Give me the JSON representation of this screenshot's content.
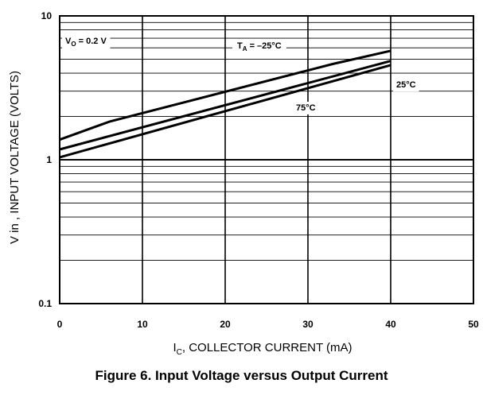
{
  "caption": "Figure 6. Input Voltage versus Output Current",
  "chart_data": {
    "type": "line",
    "xlabel_main": "I",
    "xlabel_sub": "C",
    "xlabel_rest": ", COLLECTOR CURRENT (mA)",
    "ylabel": "V in , INPUT VOLTAGE (VOLTS)",
    "xlim": [
      0,
      50
    ],
    "ylim": [
      0.1,
      10
    ],
    "yscale": "log",
    "grid": true,
    "x_ticks": [
      0,
      10,
      20,
      30,
      40,
      50
    ],
    "x_tick_labels": [
      "0",
      "10",
      "20",
      "30",
      "40",
      "50"
    ],
    "y_ticks": [
      0.1,
      1,
      10
    ],
    "y_tick_labels": [
      "0.1",
      "1",
      "10"
    ],
    "series": [
      {
        "name": "TA = -25°C",
        "x": [
          0,
          6,
          33,
          40
        ],
        "y": [
          1.38,
          1.84,
          4.63,
          5.72
        ]
      },
      {
        "name": "25°C",
        "x": [
          0,
          40
        ],
        "y": [
          1.18,
          4.86
        ]
      },
      {
        "name": "75°C",
        "x": [
          0,
          40
        ],
        "y": [
          1.04,
          4.55
        ]
      }
    ],
    "annotations": {
      "condition": {
        "main": "V",
        "sub": "O",
        "rest": " = 0.2 V"
      },
      "ta_label": {
        "main": "T",
        "sub": "A",
        "rest": " = –25°C"
      },
      "label_25": "25°C",
      "label_75": "75°C"
    },
    "line_color": "#000000",
    "grid_color": "#000000"
  }
}
